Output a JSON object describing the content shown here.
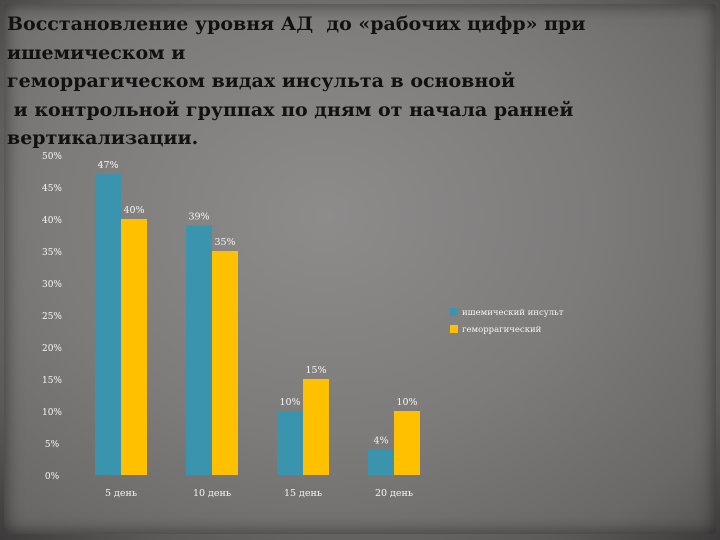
{
  "title_lines": [
    "Восстановление уровня АД  до «рабочих цифр» при",
    "ишемическом и",
    "геморрагическом видах инсульта в основной",
    " и контрольной группах по дням от начала ранней",
    "вертикализации."
  ],
  "chart_data": {
    "type": "bar",
    "categories": [
      "5 день",
      "10 день",
      "15 день",
      "20 день"
    ],
    "series": [
      {
        "name": "ишемический инсульт",
        "color": "#3a94ad",
        "values": [
          47,
          39,
          10,
          4
        ],
        "labels": [
          "47%",
          "39%",
          "10%",
          "4%"
        ]
      },
      {
        "name": "геморрагический",
        "color": "#ffc000",
        "values": [
          40,
          35,
          15,
          10
        ],
        "labels": [
          "40%",
          "35%",
          "15%",
          "10%"
        ]
      }
    ],
    "yticks": [
      "0%",
      "5%",
      "10%",
      "15%",
      "20%",
      "25%",
      "30%",
      "35%",
      "40%",
      "45%",
      "50%"
    ],
    "ylim": [
      0,
      50
    ],
    "legend_position": "right",
    "grid": false
  }
}
